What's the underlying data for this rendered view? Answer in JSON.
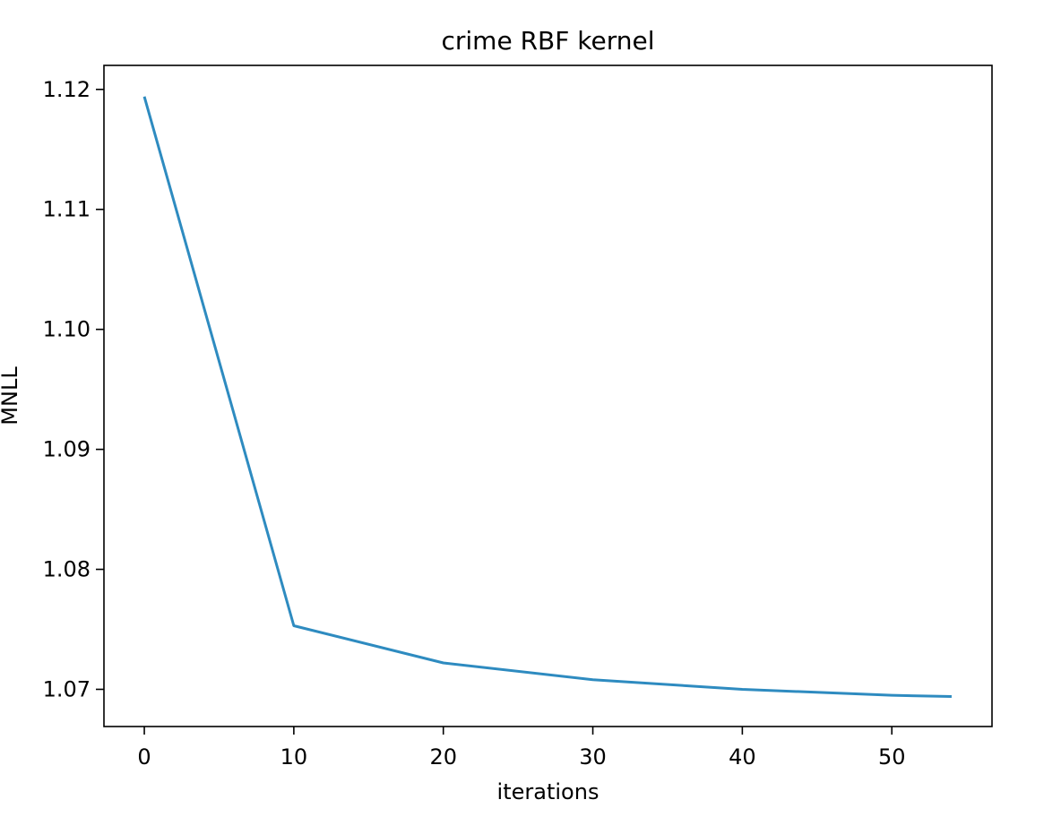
{
  "chart_data": {
    "type": "line",
    "title": "crime RBF kernel",
    "xlabel": "iterations",
    "ylabel": "MNLL",
    "xlim": [
      -2.7,
      56.7
    ],
    "ylim": [
      1.0669,
      1.122
    ],
    "xticks": [
      0,
      10,
      20,
      30,
      40,
      50
    ],
    "xtick_labels": [
      "0",
      "10",
      "20",
      "30",
      "40",
      "50"
    ],
    "yticks": [
      1.07,
      1.08,
      1.09,
      1.1,
      1.11,
      1.12
    ],
    "ytick_labels": [
      "1.07",
      "1.08",
      "1.09",
      "1.10",
      "1.11",
      "1.12"
    ],
    "grid": false,
    "series": [
      {
        "color": "#2e8bc0",
        "x": [
          0,
          10,
          20,
          30,
          40,
          50,
          54
        ],
        "y": [
          1.1194,
          1.0753,
          1.0722,
          1.0708,
          1.07,
          1.0695,
          1.0694
        ]
      }
    ]
  }
}
